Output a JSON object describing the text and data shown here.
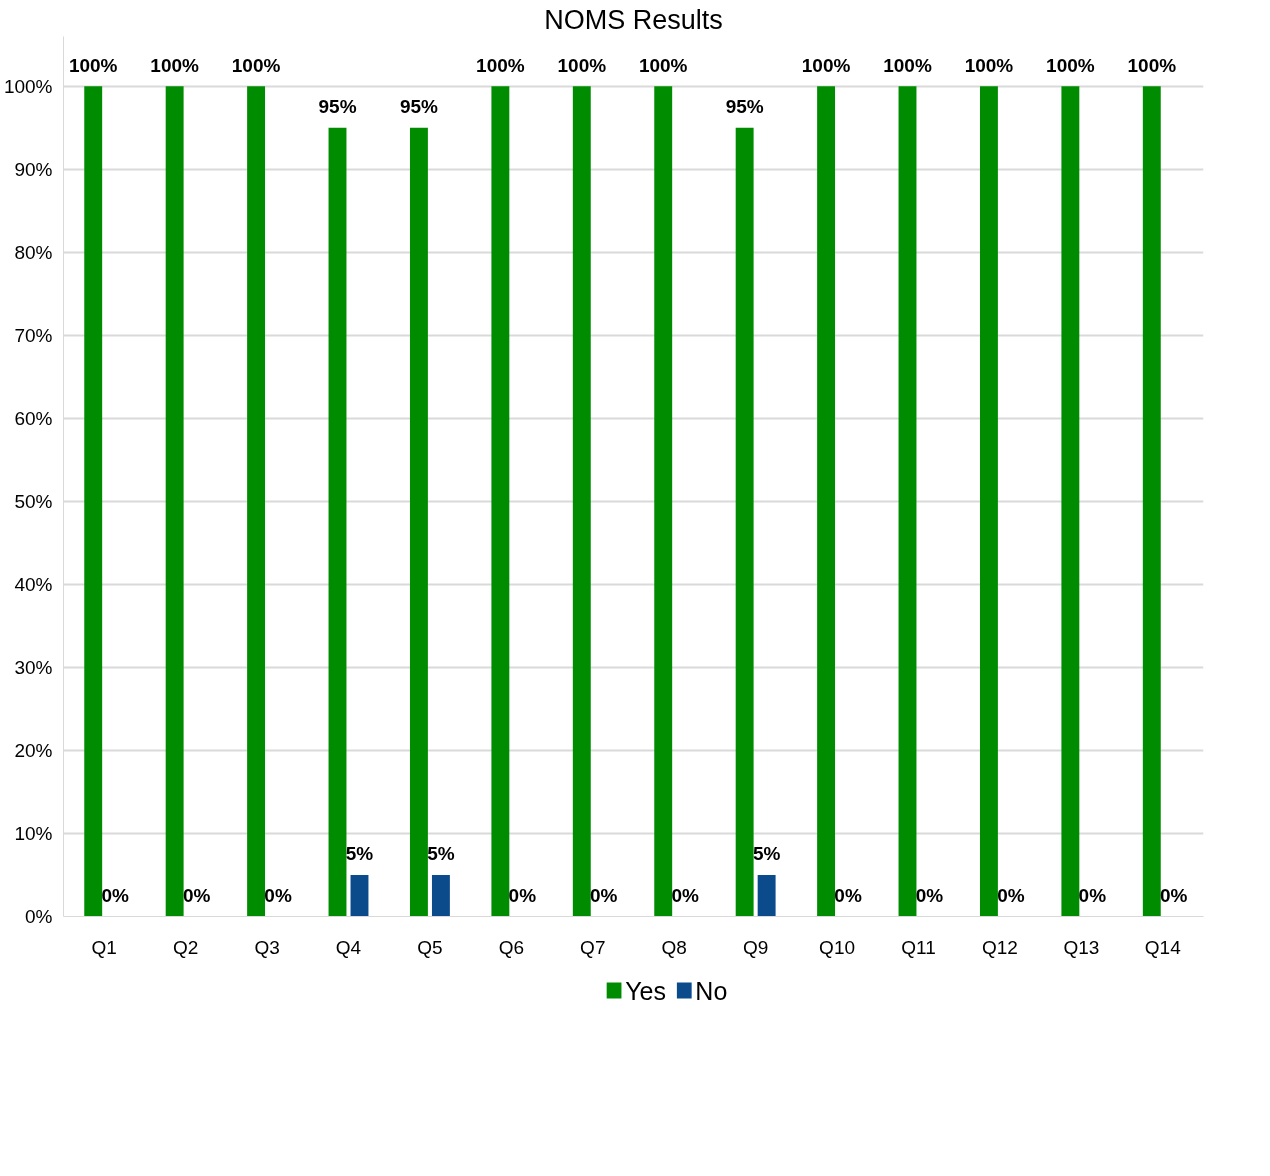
{
  "chart_data": {
    "type": "bar",
    "title": "NOMS Results",
    "categories": [
      "Q1",
      "Q2",
      "Q3",
      "Q4",
      "Q5",
      "Q6",
      "Q7",
      "Q8",
      "Q9",
      "Q10",
      "Q11",
      "Q12",
      "Q13",
      "Q14"
    ],
    "series": [
      {
        "name": "Yes",
        "color": "#008c00",
        "values": [
          100,
          100,
          100,
          95,
          95,
          100,
          100,
          100,
          95,
          100,
          100,
          100,
          100,
          100
        ],
        "value_labels": [
          "100%",
          "100%",
          "100%",
          "95%",
          "95%",
          "100%",
          "100%",
          "100%",
          "95%",
          "100%",
          "100%",
          "100%",
          "100%",
          "100%"
        ]
      },
      {
        "name": "No",
        "color": "#0b4a8b",
        "values": [
          0,
          0,
          0,
          5,
          5,
          0,
          0,
          0,
          5,
          0,
          0,
          0,
          0,
          0
        ],
        "value_labels": [
          "0%",
          "0%",
          "0%",
          "5%",
          "5%",
          "0%",
          "0%",
          "0%",
          "5%",
          "0%",
          "0%",
          "0%",
          "0%",
          "0%"
        ]
      }
    ],
    "ylim": [
      0,
      106
    ],
    "yticks": [
      {
        "value": 0,
        "label": "0%"
      },
      {
        "value": 10,
        "label": "10%"
      },
      {
        "value": 20,
        "label": "20%"
      },
      {
        "value": 30,
        "label": "30%"
      },
      {
        "value": 40,
        "label": "40%"
      },
      {
        "value": 50,
        "label": "50%"
      },
      {
        "value": 60,
        "label": "60%"
      },
      {
        "value": 70,
        "label": "70%"
      },
      {
        "value": 80,
        "label": "80%"
      },
      {
        "value": 90,
        "label": "90%"
      },
      {
        "value": 100,
        "label": "100%"
      }
    ],
    "grid": "y",
    "legend": "bottom"
  }
}
